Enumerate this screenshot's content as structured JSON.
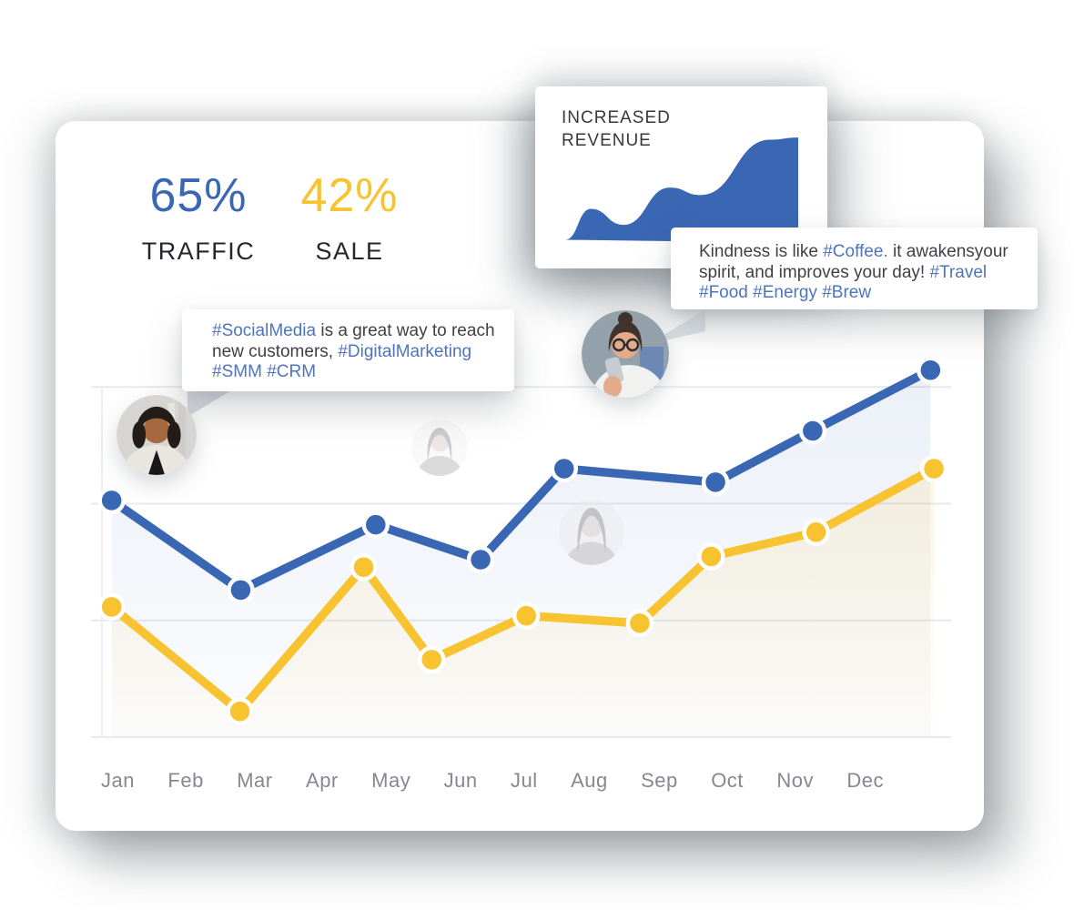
{
  "page": {
    "background": "#ffffff"
  },
  "colors": {
    "traffic_blue": "#3A67B4",
    "sale_yellow": "#F7C331",
    "hashtag_blue": "#4E74BE",
    "text_dark": "#3F3F46",
    "month_gray": "#87878F",
    "gridline": "#E8EAEE"
  },
  "stats": {
    "traffic": {
      "value": "65%",
      "label": "TRAFFIC",
      "color": "#3A67B4"
    },
    "sale": {
      "value": "42%",
      "label": "SALE",
      "color": "#F7C331"
    }
  },
  "revenue_card": {
    "title_line1": "INCREASED",
    "title_line2": "REVENUE",
    "wave_color": "#3A67B4"
  },
  "bubbles": {
    "kindness": {
      "segments": [
        {
          "t": "Kindness is like "
        },
        {
          "t": "#Coffee.",
          "h": true
        },
        {
          "t": " it awakensyour"
        },
        {
          "br": true
        },
        {
          "t": "spirit, and improves your day! "
        },
        {
          "t": "#Travel",
          "h": true
        },
        {
          "br": true
        },
        {
          "t": "#Food",
          "h": true
        },
        {
          "t": " "
        },
        {
          "t": "#Energy",
          "h": true
        },
        {
          "t": " "
        },
        {
          "t": "#Brew",
          "h": true
        }
      ]
    },
    "social": {
      "segments": [
        {
          "t": "#SocialMedia",
          "h": true
        },
        {
          "t": " is a great way to reach"
        },
        {
          "br": true
        },
        {
          "t": "new customers, "
        },
        {
          "t": "#DigitalMarketing",
          "h": true
        },
        {
          "br": true
        },
        {
          "t": "#SMM",
          "h": true
        },
        {
          "t": " "
        },
        {
          "t": "#CRM",
          "h": true
        }
      ]
    }
  },
  "avatars": [
    {
      "name": "woman-curly-hair-avatar"
    },
    {
      "name": "woman-with-phone-avatar"
    },
    {
      "name": "faded-woman-avatar-1"
    },
    {
      "name": "faded-woman-avatar-2"
    }
  ],
  "chart_data": [
    {
      "type": "line",
      "categories": [
        "Jan",
        "Feb",
        "Mar",
        "Apr",
        "May",
        "Jun",
        "Jul",
        "Aug",
        "Sep",
        "Oct",
        "Nov",
        "Dec"
      ],
      "ylim": [
        0,
        100
      ],
      "gridline_values": [
        0,
        25,
        50,
        75
      ],
      "legend": "none",
      "value_scale_note": "no numeric y-axis shown; values are percent of plot height, x is percent of plot width",
      "series": [
        {
          "name": "traffic",
          "color": "#3A67B4",
          "points": [
            [
              2.4,
              50.7
            ],
            [
              17.4,
              31.5
            ],
            [
              33.1,
              45.5
            ],
            [
              45.3,
              38.0
            ],
            [
              55.0,
              57.5
            ],
            [
              72.6,
              54.6
            ],
            [
              83.9,
              65.6
            ],
            [
              97.6,
              78.6
            ]
          ]
        },
        {
          "name": "sale",
          "color": "#F7C331",
          "points": [
            [
              2.4,
              27.9
            ],
            [
              17.3,
              5.5
            ],
            [
              31.7,
              36.4
            ],
            [
              39.6,
              16.6
            ],
            [
              50.6,
              26.0
            ],
            [
              63.8,
              24.4
            ],
            [
              72.1,
              38.7
            ],
            [
              84.3,
              43.9
            ],
            [
              98.0,
              57.5
            ]
          ]
        }
      ]
    },
    {
      "type": "area",
      "name": "increased-revenue-wave",
      "color": "#3A67B4",
      "points": [
        [
          0,
          3
        ],
        [
          11,
          32
        ],
        [
          25,
          17
        ],
        [
          45,
          52
        ],
        [
          58,
          45
        ],
        [
          88,
          97
        ],
        [
          100,
          99
        ]
      ]
    }
  ]
}
